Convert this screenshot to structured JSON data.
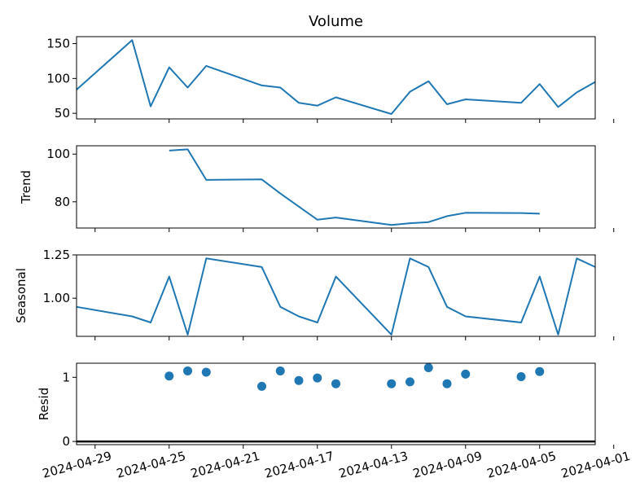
{
  "chart_data": [
    {
      "type": "line",
      "title": "Volume",
      "ylabel": "",
      "ylim": [
        42,
        160
      ],
      "yticks": [
        50,
        100,
        150
      ],
      "points": [
        {
          "x": "2024-04-30",
          "y": 84
        },
        {
          "x": "2024-04-27",
          "y": 155
        },
        {
          "x": "2024-04-26",
          "y": 60
        },
        {
          "x": "2024-04-25",
          "y": 116
        },
        {
          "x": "2024-04-24",
          "y": 87
        },
        {
          "x": "2024-04-23",
          "y": 118
        },
        {
          "x": "2024-04-20",
          "y": 90
        },
        {
          "x": "2024-04-19",
          "y": 87
        },
        {
          "x": "2024-04-18",
          "y": 65
        },
        {
          "x": "2024-04-17",
          "y": 61
        },
        {
          "x": "2024-04-16",
          "y": 73
        },
        {
          "x": "2024-04-13",
          "y": 49
        },
        {
          "x": "2024-04-12",
          "y": 81
        },
        {
          "x": "2024-04-11",
          "y": 96
        },
        {
          "x": "2024-04-10",
          "y": 63
        },
        {
          "x": "2024-04-09",
          "y": 70
        },
        {
          "x": "2024-04-06",
          "y": 65
        },
        {
          "x": "2024-04-05",
          "y": 92
        },
        {
          "x": "2024-04-04",
          "y": 59
        },
        {
          "x": "2024-04-03",
          "y": 80
        },
        {
          "x": "2024-04-02",
          "y": 95
        }
      ]
    },
    {
      "type": "line",
      "title": "",
      "ylabel": "Trend",
      "ylim": [
        69,
        103.5
      ],
      "yticks": [
        80,
        100
      ],
      "points": [
        {
          "x": "2024-04-25",
          "y": 101.5
        },
        {
          "x": "2024-04-24",
          "y": 102
        },
        {
          "x": "2024-04-23",
          "y": 89.2
        },
        {
          "x": "2024-04-20",
          "y": 89.4
        },
        {
          "x": "2024-04-19",
          "y": 83.5
        },
        {
          "x": "2024-04-18",
          "y": 78
        },
        {
          "x": "2024-04-17",
          "y": 72.5
        },
        {
          "x": "2024-04-16",
          "y": 73.4
        },
        {
          "x": "2024-04-13",
          "y": 70.3
        },
        {
          "x": "2024-04-12",
          "y": 71
        },
        {
          "x": "2024-04-11",
          "y": 71.5
        },
        {
          "x": "2024-04-10",
          "y": 74
        },
        {
          "x": "2024-04-09",
          "y": 75.4
        },
        {
          "x": "2024-04-06",
          "y": 75.3
        },
        {
          "x": "2024-04-05",
          "y": 75
        }
      ]
    },
    {
      "type": "line",
      "title": "",
      "ylabel": "Seasonal",
      "ylim": [
        0.78,
        1.25
      ],
      "yticks": [
        1.0,
        1.25
      ],
      "ytick_labels": [
        "1.00",
        "1.25"
      ],
      "points": [
        {
          "x": "2024-04-30",
          "y": 0.95
        },
        {
          "x": "2024-04-27",
          "y": 0.895
        },
        {
          "x": "2024-04-26",
          "y": 0.86
        },
        {
          "x": "2024-04-25",
          "y": 1.125
        },
        {
          "x": "2024-04-24",
          "y": 0.79
        },
        {
          "x": "2024-04-23",
          "y": 1.23
        },
        {
          "x": "2024-04-20",
          "y": 1.18
        },
        {
          "x": "2024-04-19",
          "y": 0.95
        },
        {
          "x": "2024-04-18",
          "y": 0.895
        },
        {
          "x": "2024-04-17",
          "y": 0.86
        },
        {
          "x": "2024-04-16",
          "y": 1.125
        },
        {
          "x": "2024-04-13",
          "y": 0.79
        },
        {
          "x": "2024-04-12",
          "y": 1.23
        },
        {
          "x": "2024-04-11",
          "y": 1.18
        },
        {
          "x": "2024-04-10",
          "y": 0.95
        },
        {
          "x": "2024-04-09",
          "y": 0.895
        },
        {
          "x": "2024-04-06",
          "y": 0.86
        },
        {
          "x": "2024-04-05",
          "y": 1.125
        },
        {
          "x": "2024-04-04",
          "y": 0.79
        },
        {
          "x": "2024-04-03",
          "y": 1.23
        },
        {
          "x": "2024-04-02",
          "y": 1.18
        }
      ]
    },
    {
      "type": "scatter",
      "title": "",
      "ylabel": "Resid",
      "ylim": [
        -0.05,
        1.22
      ],
      "yticks": [
        0,
        1
      ],
      "zero_line": true,
      "points": [
        {
          "x": "2024-04-25",
          "y": 1.02
        },
        {
          "x": "2024-04-24",
          "y": 1.1
        },
        {
          "x": "2024-04-23",
          "y": 1.08
        },
        {
          "x": "2024-04-20",
          "y": 0.86
        },
        {
          "x": "2024-04-19",
          "y": 1.1
        },
        {
          "x": "2024-04-18",
          "y": 0.95
        },
        {
          "x": "2024-04-17",
          "y": 0.99
        },
        {
          "x": "2024-04-16",
          "y": 0.9
        },
        {
          "x": "2024-04-13",
          "y": 0.9
        },
        {
          "x": "2024-04-12",
          "y": 0.93
        },
        {
          "x": "2024-04-11",
          "y": 1.15
        },
        {
          "x": "2024-04-10",
          "y": 0.9
        },
        {
          "x": "2024-04-09",
          "y": 1.05
        },
        {
          "x": "2024-04-06",
          "y": 1.01
        },
        {
          "x": "2024-04-05",
          "y": 1.09
        }
      ]
    }
  ],
  "x_axis": {
    "direction": "descending",
    "range": [
      "2024-04-30",
      "2024-04-02"
    ],
    "tick_labels": [
      "2024-04-29",
      "2024-04-25",
      "2024-04-21",
      "2024-04-17",
      "2024-04-13",
      "2024-04-09",
      "2024-04-05",
      "2024-04-01"
    ]
  },
  "colors": {
    "series": "#1f77b4",
    "axes": "#000000",
    "background": "#ffffff"
  }
}
